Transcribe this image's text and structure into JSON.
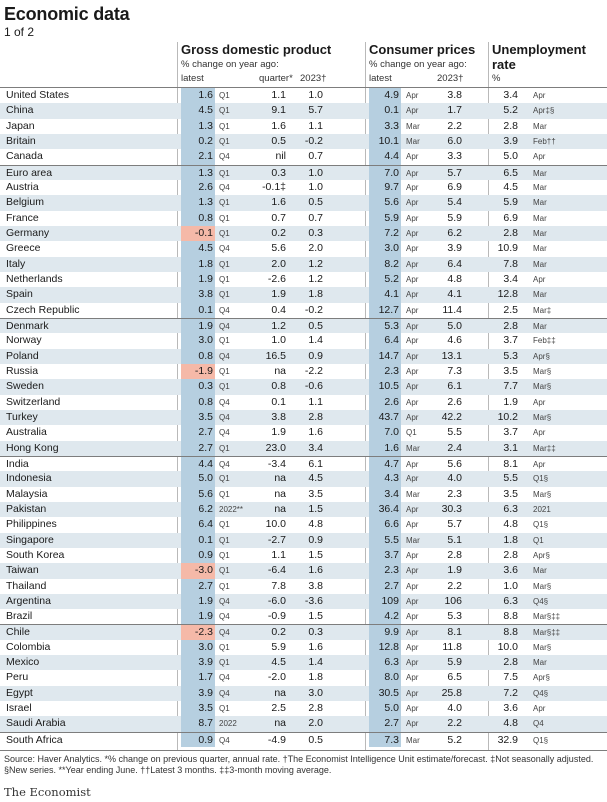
{
  "title": "Economic data",
  "subtitle": "1 of 2",
  "headers": {
    "gdp": {
      "title": "Gross domestic product",
      "sub": "% change on year ago:",
      "latest": "latest",
      "quarter": "quarter*",
      "year": "2023†"
    },
    "cpi": {
      "title": "Consumer prices",
      "sub": "% change on year ago:",
      "latest": "latest",
      "year": "2023†"
    },
    "unemp": {
      "title1": "Unemployment",
      "title2": "rate",
      "sub": "%"
    }
  },
  "groups_start": [
    0,
    5,
    15,
    24,
    35,
    42
  ],
  "rows": [
    [
      "United States",
      "1.6",
      "Q1",
      "1.1",
      "1.0",
      "4.9",
      "Apr",
      "3.8",
      "3.4",
      "Apr"
    ],
    [
      "China",
      "4.5",
      "Q1",
      "9.1",
      "5.7",
      "0.1",
      "Apr",
      "1.7",
      "5.2",
      "Apr‡§"
    ],
    [
      "Japan",
      "1.3",
      "Q1",
      "1.6",
      "1.1",
      "3.3",
      "Mar",
      "2.2",
      "2.8",
      "Mar"
    ],
    [
      "Britain",
      "0.2",
      "Q1",
      "0.5",
      "-0.2",
      "10.1",
      "Mar",
      "6.0",
      "3.9",
      "Feb††"
    ],
    [
      "Canada",
      "2.1",
      "Q4",
      "nil",
      "0.7",
      "4.4",
      "Apr",
      "3.3",
      "5.0",
      "Apr"
    ],
    [
      "Euro area",
      "1.3",
      "Q1",
      "0.3",
      "1.0",
      "7.0",
      "Apr",
      "5.7",
      "6.5",
      "Mar"
    ],
    [
      "Austria",
      "2.6",
      "Q4",
      "-0.1‡",
      "1.0",
      "9.7",
      "Apr",
      "6.9",
      "4.5",
      "Mar"
    ],
    [
      "Belgium",
      "1.3",
      "Q1",
      "1.6",
      "0.5",
      "5.6",
      "Apr",
      "5.4",
      "5.9",
      "Mar"
    ],
    [
      "France",
      "0.8",
      "Q1",
      "0.7",
      "0.7",
      "5.9",
      "Apr",
      "5.9",
      "6.9",
      "Mar"
    ],
    [
      "Germany",
      "-0.1",
      "Q1",
      "0.2",
      "0.3",
      "7.2",
      "Apr",
      "6.2",
      "2.8",
      "Mar"
    ],
    [
      "Greece",
      "4.5",
      "Q4",
      "5.6",
      "2.0",
      "3.0",
      "Apr",
      "3.9",
      "10.9",
      "Mar"
    ],
    [
      "Italy",
      "1.8",
      "Q1",
      "2.0",
      "1.2",
      "8.2",
      "Apr",
      "6.4",
      "7.8",
      "Mar"
    ],
    [
      "Netherlands",
      "1.9",
      "Q1",
      "-2.6",
      "1.2",
      "5.2",
      "Apr",
      "4.8",
      "3.4",
      "Apr"
    ],
    [
      "Spain",
      "3.8",
      "Q1",
      "1.9",
      "1.8",
      "4.1",
      "Apr",
      "4.1",
      "12.8",
      "Mar"
    ],
    [
      "Czech Republic",
      "0.1",
      "Q4",
      "0.4",
      "-0.2",
      "12.7",
      "Apr",
      "11.4",
      "2.5",
      "Mar‡"
    ],
    [
      "Denmark",
      "1.9",
      "Q4",
      "1.2",
      "0.5",
      "5.3",
      "Apr",
      "5.0",
      "2.8",
      "Mar"
    ],
    [
      "Norway",
      "3.0",
      "Q1",
      "1.0",
      "1.4",
      "6.4",
      "Apr",
      "4.6",
      "3.7",
      "Feb‡‡"
    ],
    [
      "Poland",
      "0.8",
      "Q4",
      "16.5",
      "0.9",
      "14.7",
      "Apr",
      "13.1",
      "5.3",
      "Apr§"
    ],
    [
      "Russia",
      "-1.9",
      "Q1",
      "na",
      "-2.2",
      "2.3",
      "Apr",
      "7.3",
      "3.5",
      "Mar§"
    ],
    [
      "Sweden",
      "0.3",
      "Q1",
      "0.8",
      "-0.6",
      "10.5",
      "Apr",
      "6.1",
      "7.7",
      "Mar§"
    ],
    [
      "Switzerland",
      "0.8",
      "Q4",
      "0.1",
      "1.1",
      "2.6",
      "Apr",
      "2.6",
      "1.9",
      "Apr"
    ],
    [
      "Turkey",
      "3.5",
      "Q4",
      "3.8",
      "2.8",
      "43.7",
      "Apr",
      "42.2",
      "10.2",
      "Mar§"
    ],
    [
      "Australia",
      "2.7",
      "Q4",
      "1.9",
      "1.6",
      "7.0",
      "Q1",
      "5.5",
      "3.7",
      "Apr"
    ],
    [
      "Hong Kong",
      "2.7",
      "Q1",
      "23.0",
      "3.4",
      "1.6",
      "Mar",
      "2.4",
      "3.1",
      "Mar‡‡"
    ],
    [
      "India",
      "4.4",
      "Q4",
      "-3.4",
      "6.1",
      "4.7",
      "Apr",
      "5.6",
      "8.1",
      "Apr"
    ],
    [
      "Indonesia",
      "5.0",
      "Q1",
      "na",
      "4.5",
      "4.3",
      "Apr",
      "4.0",
      "5.5",
      "Q1§"
    ],
    [
      "Malaysia",
      "5.6",
      "Q1",
      "na",
      "3.5",
      "3.4",
      "Mar",
      "2.3",
      "3.5",
      "Mar§"
    ],
    [
      "Pakistan",
      "6.2",
      "2022**",
      "na",
      "1.5",
      "36.4",
      "Apr",
      "30.3",
      "6.3",
      "2021"
    ],
    [
      "Philippines",
      "6.4",
      "Q1",
      "10.0",
      "4.8",
      "6.6",
      "Apr",
      "5.7",
      "4.8",
      "Q1§"
    ],
    [
      "Singapore",
      "0.1",
      "Q1",
      "-2.7",
      "0.9",
      "5.5",
      "Mar",
      "5.1",
      "1.8",
      "Q1"
    ],
    [
      "South Korea",
      "0.9",
      "Q1",
      "1.1",
      "1.5",
      "3.7",
      "Apr",
      "2.8",
      "2.8",
      "Apr§"
    ],
    [
      "Taiwan",
      "-3.0",
      "Q1",
      "-6.4",
      "1.6",
      "2.3",
      "Apr",
      "1.9",
      "3.6",
      "Mar"
    ],
    [
      "Thailand",
      "2.7",
      "Q1",
      "7.8",
      "3.8",
      "2.7",
      "Apr",
      "2.2",
      "1.0",
      "Mar§"
    ],
    [
      "Argentina",
      "1.9",
      "Q4",
      "-6.0",
      "-3.6",
      "109",
      "Apr",
      "106",
      "6.3",
      "Q4§"
    ],
    [
      "Brazil",
      "1.9",
      "Q4",
      "-0.9",
      "1.5",
      "4.2",
      "Apr",
      "5.3",
      "8.8",
      "Mar§‡‡"
    ],
    [
      "Chile",
      "-2.3",
      "Q4",
      "0.2",
      "0.3",
      "9.9",
      "Apr",
      "8.1",
      "8.8",
      "Mar§‡‡"
    ],
    [
      "Colombia",
      "3.0",
      "Q1",
      "5.9",
      "1.6",
      "12.8",
      "Apr",
      "11.8",
      "10.0",
      "Mar§"
    ],
    [
      "Mexico",
      "3.9",
      "Q1",
      "4.5",
      "1.4",
      "6.3",
      "Apr",
      "5.9",
      "2.8",
      "Mar"
    ],
    [
      "Peru",
      "1.7",
      "Q4",
      "-2.0",
      "1.8",
      "8.0",
      "Apr",
      "6.5",
      "7.5",
      "Apr§"
    ],
    [
      "Egypt",
      "3.9",
      "Q4",
      "na",
      "3.0",
      "30.5",
      "Apr",
      "25.8",
      "7.2",
      "Q4§"
    ],
    [
      "Israel",
      "3.5",
      "Q1",
      "2.5",
      "2.8",
      "5.0",
      "Apr",
      "4.0",
      "3.6",
      "Apr"
    ],
    [
      "Saudi Arabia",
      "8.7",
      "2022",
      "na",
      "2.0",
      "2.7",
      "Apr",
      "2.2",
      "4.8",
      "Q4"
    ],
    [
      "South Africa",
      "0.9",
      "Q4",
      "-4.9",
      "0.5",
      "7.3",
      "Mar",
      "5.2",
      "32.9",
      "Q1§"
    ]
  ],
  "source": "Source: Haver Analytics. *% change on previous quarter, annual rate. †The Economist Intelligence Unit estimate/forecast. ‡Not seasonally adjusted. §New series. **Year ending June. ††Latest 3 months. ‡‡3-month moving average.",
  "brand": "The Economist",
  "colors": {
    "highlight": "#b6cfe0",
    "negative": "#f5b9a8",
    "stripe": "#dfe8ee"
  }
}
